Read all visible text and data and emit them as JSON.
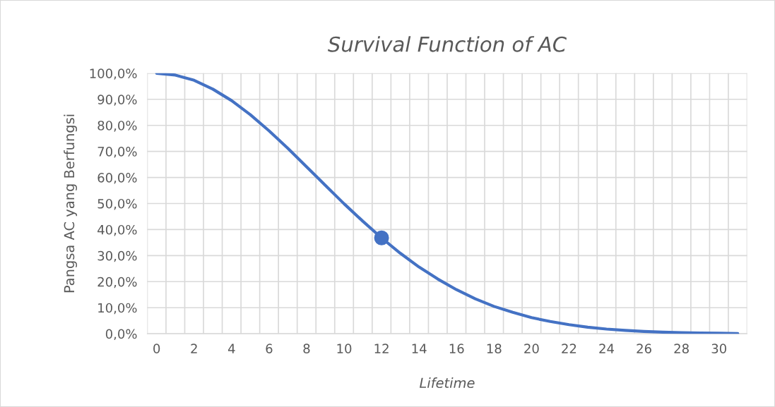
{
  "chart_data": {
    "type": "line",
    "title": "Survival Function of AC",
    "xlabel": "Lifetime",
    "ylabel": "Pangsa AC yang Berfungsi",
    "categories": [
      "0",
      null,
      "2",
      null,
      "4",
      null,
      "6",
      null,
      "8",
      null,
      "10",
      null,
      "12",
      null,
      "14",
      null,
      "16",
      null,
      "18",
      null,
      "20",
      null,
      "22",
      null,
      "24",
      null,
      "26",
      null,
      "28",
      null,
      "30",
      null
    ],
    "series": [
      {
        "color": "#4472c4",
        "marker": "none",
        "values": [
          100,
          99.3,
          97.3,
          93.9,
          89.5,
          84.1,
          77.9,
          71.2,
          64.1,
          57.0,
          49.9,
          43.2,
          36.8,
          30.9,
          25.6,
          21.0,
          16.9,
          13.4,
          10.5,
          8.2,
          6.2,
          4.7,
          3.5,
          2.5,
          1.8,
          1.3,
          0.9,
          0.6,
          0.4,
          0.3,
          0.2,
          0.1
        ]
      },
      {
        "type": "scatter",
        "color": "#4472c4",
        "marker": "circle",
        "x": [
          "12"
        ],
        "values": [
          36.8
        ]
      }
    ],
    "ylim": [
      0,
      100
    ],
    "yticks": [
      {
        "value": 0,
        "label": "0,0%"
      },
      {
        "value": 10,
        "label": "10,0%"
      },
      {
        "value": 20,
        "label": "20,0%"
      },
      {
        "value": 30,
        "label": "30,0%"
      },
      {
        "value": 40,
        "label": "40,0%"
      },
      {
        "value": 50,
        "label": "50,0%"
      },
      {
        "value": 60,
        "label": "60,0%"
      },
      {
        "value": 70,
        "label": "70,0%"
      },
      {
        "value": 80,
        "label": "80,0%"
      },
      {
        "value": 90,
        "label": "90,0%"
      },
      {
        "value": 100,
        "label": "100,0%"
      }
    ],
    "grid": true,
    "line_style": "solid"
  }
}
